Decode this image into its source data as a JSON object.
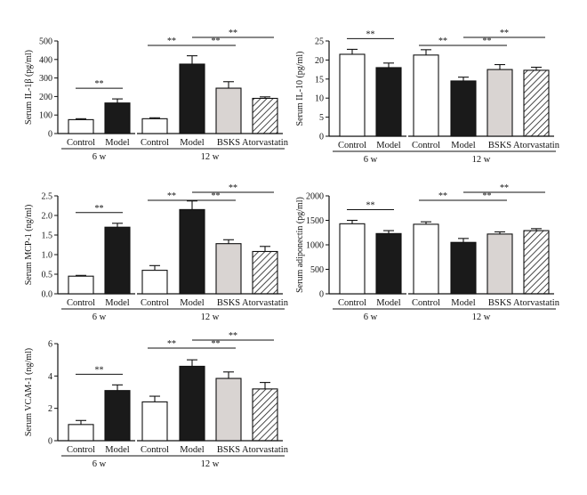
{
  "colors": {
    "control_fill": "#ffffff",
    "model_fill": "#1a1a1a",
    "bsks_fill": "#d9d4d2",
    "atorvastatin_hatch": "#1a1a1a",
    "axis": "#111111"
  },
  "chart_data": [
    {
      "type": "bar",
      "id": "il1b",
      "ylabel": "Serum IL-1β (pg/ml)",
      "ylim": [
        0,
        500
      ],
      "yticks": [
        "0",
        "100",
        "200",
        "300",
        "400",
        "500"
      ],
      "categories": [
        "Control",
        "Model",
        "Control",
        "Model",
        "BSKS",
        "Atorvastatin"
      ],
      "groups": [
        {
          "label": "6 w",
          "span": [
            0,
            1
          ]
        },
        {
          "label": "12 w",
          "span": [
            2,
            5
          ]
        }
      ],
      "values": [
        75,
        165,
        80,
        375,
        245,
        190
      ],
      "errors": [
        5,
        22,
        5,
        45,
        35,
        8
      ],
      "significance": [
        {
          "from": 0,
          "to": 1,
          "label": "**"
        },
        {
          "from": 2,
          "to": 3,
          "label": "**"
        },
        {
          "from": 3,
          "to": 4,
          "label": "**"
        },
        {
          "from": 3,
          "to": 5,
          "label": "**"
        }
      ]
    },
    {
      "type": "bar",
      "id": "il10",
      "ylabel": "Serum IL-10 (pg/ml)",
      "ylim": [
        0,
        25
      ],
      "yticks": [
        "0",
        "5",
        "10",
        "15",
        "20",
        "25"
      ],
      "categories": [
        "Control",
        "Model",
        "Control",
        "Model",
        "BSKS",
        "Atorvastatin"
      ],
      "groups": [
        {
          "label": "6 w",
          "span": [
            0,
            1
          ]
        },
        {
          "label": "12 w",
          "span": [
            2,
            5
          ]
        }
      ],
      "values": [
        21.5,
        18.0,
        21.3,
        14.5,
        17.5,
        17.3
      ],
      "errors": [
        1.3,
        1.2,
        1.4,
        1.0,
        1.3,
        0.8
      ],
      "significance": [
        {
          "from": 0,
          "to": 1,
          "label": "**"
        },
        {
          "from": 2,
          "to": 3,
          "label": "**"
        },
        {
          "from": 3,
          "to": 4,
          "label": "**"
        },
        {
          "from": 3,
          "to": 5,
          "label": "**"
        }
      ]
    },
    {
      "type": "bar",
      "id": "mcp1",
      "ylabel": "Serum MCP-1 (ng/ml)",
      "ylim": [
        0,
        2.5
      ],
      "yticks": [
        "0.0",
        "0.5",
        "1.0",
        "1.5",
        "2.0",
        "2.5"
      ],
      "categories": [
        "Control",
        "Model",
        "Control",
        "Model",
        "BSKS",
        "Atorvastatin"
      ],
      "groups": [
        {
          "label": "6 w",
          "span": [
            0,
            1
          ]
        },
        {
          "label": "12 w",
          "span": [
            2,
            5
          ]
        }
      ],
      "values": [
        0.45,
        1.7,
        0.6,
        2.15,
        1.28,
        1.08
      ],
      "errors": [
        0.02,
        0.1,
        0.12,
        0.22,
        0.1,
        0.13
      ],
      "significance": [
        {
          "from": 0,
          "to": 1,
          "label": "**"
        },
        {
          "from": 2,
          "to": 3,
          "label": "**"
        },
        {
          "from": 3,
          "to": 4,
          "label": "**"
        },
        {
          "from": 3,
          "to": 5,
          "label": "**"
        }
      ]
    },
    {
      "type": "bar",
      "id": "adiponectin",
      "ylabel": "Serum adiponectin (pg/ml)",
      "ylim": [
        0,
        2000
      ],
      "yticks": [
        "0",
        "500",
        "1000",
        "1500",
        "2000"
      ],
      "categories": [
        "Control",
        "Model",
        "Control",
        "Model",
        "BSKS",
        "Atorvastatin"
      ],
      "groups": [
        {
          "label": "6 w",
          "span": [
            0,
            1
          ]
        },
        {
          "label": "12 w",
          "span": [
            2,
            5
          ]
        }
      ],
      "values": [
        1430,
        1230,
        1420,
        1050,
        1220,
        1290
      ],
      "errors": [
        70,
        60,
        50,
        80,
        45,
        40
      ],
      "significance": [
        {
          "from": 0,
          "to": 1,
          "label": "**"
        },
        {
          "from": 2,
          "to": 3,
          "label": "**"
        },
        {
          "from": 3,
          "to": 4,
          "label": "**"
        },
        {
          "from": 3,
          "to": 5,
          "label": "**"
        }
      ]
    },
    {
      "type": "bar",
      "id": "vcam1",
      "ylabel": "Serum VCAM-1 (ng/ml)",
      "ylim": [
        0,
        6
      ],
      "yticks": [
        "0",
        "2",
        "4",
        "6"
      ],
      "categories": [
        "Control",
        "Model",
        "Control",
        "Model",
        "BSKS",
        "Atorvastatin"
      ],
      "groups": [
        {
          "label": "6 w",
          "span": [
            0,
            1
          ]
        },
        {
          "label": "12 w",
          "span": [
            2,
            5
          ]
        }
      ],
      "values": [
        1.0,
        3.1,
        2.4,
        4.6,
        3.85,
        3.2
      ],
      "errors": [
        0.25,
        0.35,
        0.35,
        0.4,
        0.4,
        0.4
      ],
      "significance": [
        {
          "from": 0,
          "to": 1,
          "label": "**"
        },
        {
          "from": 2,
          "to": 3,
          "label": "**"
        },
        {
          "from": 3,
          "to": 4,
          "label": "**"
        },
        {
          "from": 3,
          "to": 5,
          "label": "**"
        }
      ]
    }
  ]
}
